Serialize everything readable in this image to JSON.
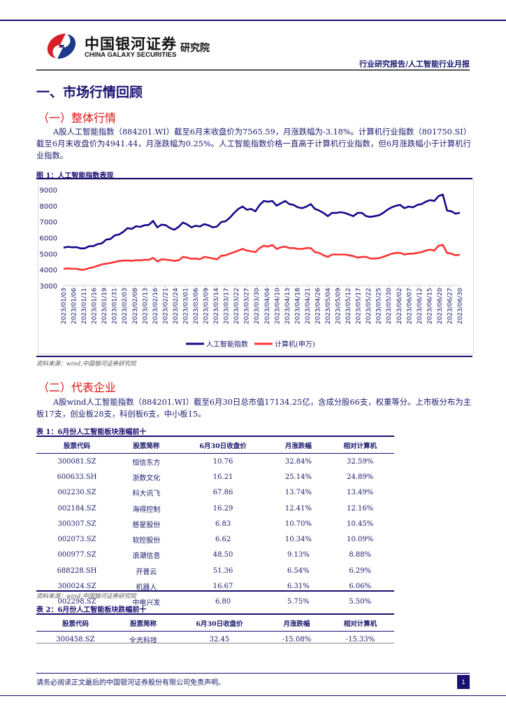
{
  "header": {
    "brand_cn": "中国银河证券",
    "brand_en": "CHINA GALAXY SECURITIES",
    "institute": "研究院",
    "report_tag": "行业研究报告/人工智能行业月报"
  },
  "section1": {
    "title": "一、市场行情回顾",
    "sub1_title": "（一）整体行情",
    "para1": "A股人工智能指数（884201.WI）截至6月末收盘价为7565.59，月涨跌幅为-3.18%。计算机行业指数（801750.SI）截至6月末收盘价为4941.44，月涨跌幅为0.25%。人工智能指数价格一直高于计算机行业指数，但6月涨跌幅小于计算机行业指数。",
    "figure1_caption": "图 1：人工智能指数表现",
    "figure1_source": "资料来源：wind,中国银河证券研究院",
    "sub2_title": "（二）代表企业",
    "para2": "A股wind人工智能指数（884201.WI）截至6月30日总市值17134.25亿，含成分股66支，权重等分。上市板分布为主板17支，创业板28支，科创板6支，中小板15。",
    "table1_caption": "表 1：6月份人工智能板块涨幅前十",
    "table1_source": "资料来源：wind,中国银河证券研究院",
    "table2_caption": "表 2：6月份人工智能板块跌幅前十"
  },
  "table_headers": [
    "股票代码",
    "股票简称",
    "6月30日收盘价",
    "月涨跌幅",
    "相对计算机"
  ],
  "table1_rows": [
    [
      "300081.SZ",
      "恒信东方",
      "10.76",
      "32.84%",
      "32.59%"
    ],
    [
      "600633.SH",
      "浙数文化",
      "16.21",
      "25.14%",
      "24.89%"
    ],
    [
      "002230.SZ",
      "科大讯飞",
      "67.86",
      "13.74%",
      "13.49%"
    ],
    [
      "002184.SZ",
      "海得控制",
      "16.29",
      "12.41%",
      "12.16%"
    ],
    [
      "300307.SZ",
      "慈星股份",
      "6.83",
      "10.70%",
      "10.45%"
    ],
    [
      "002073.SZ",
      "软控股份",
      "6.62",
      "10.34%",
      "10.09%"
    ],
    [
      "000977.SZ",
      "浪潮信息",
      "48.50",
      "9.13%",
      "8.88%"
    ],
    [
      "688228.SH",
      "开普云",
      "51.36",
      "6.54%",
      "6.29%"
    ],
    [
      "300024.SZ",
      "机器人",
      "16.67",
      "6.31%",
      "6.06%"
    ],
    [
      "002298.SZ",
      "中电兴发",
      "6.80",
      "5.75%",
      "5.50%"
    ]
  ],
  "table2_rows": [
    [
      "300458.SZ",
      "全志科技",
      "32.45",
      "-15.08%",
      "-15.33%"
    ]
  ],
  "footer": {
    "disclaimer": "请务必阅读正文最后的中国银河证券股份有限公司免责声明。",
    "page": "1"
  },
  "colors": {
    "navy": "#1a1070",
    "red": "#ff3333",
    "ai_line": "#13088a"
  },
  "chart_data": {
    "type": "line",
    "title": "图 1：人工智能指数表现",
    "xlabel": "",
    "ylabel": "",
    "ylim": [
      3000,
      9000
    ],
    "yticks": [
      3000,
      4000,
      5000,
      6000,
      7000,
      8000,
      9000
    ],
    "grid": false,
    "legend_position": "bottom",
    "x_tick_labels": [
      "2023/01/03",
      "2023/01/06",
      "2023/01/11",
      "2023/01/16",
      "2023/01/19",
      "2023/01/31",
      "2023/02/03",
      "2023/02/08",
      "2023/02/13",
      "2023/02/16",
      "2023/02/21",
      "2023/02/24",
      "2023/03/01",
      "2023/03/06",
      "2023/03/09",
      "2023/03/14",
      "2023/03/17",
      "2023/03/22",
      "2023/03/27",
      "2023/03/30",
      "2023/04/04",
      "2023/04/10",
      "2023/04/13",
      "2023/04/18",
      "2023/04/21",
      "2023/04/26",
      "2023/05/04",
      "2023/05/09",
      "2023/05/12",
      "2023/05/17",
      "2023/05/22",
      "2023/05/25",
      "2023/05/30",
      "2023/06/02",
      "2023/06/07",
      "2023/06/12",
      "2023/06/15",
      "2023/06/20",
      "2023/06/27",
      "2023/06/30"
    ],
    "series": [
      {
        "name": "人工智能指数",
        "color": "#13088a",
        "values": [
          5380,
          5430,
          5400,
          5410,
          5330,
          5340,
          5470,
          5480,
          5600,
          5650,
          5880,
          5920,
          6150,
          6200,
          6370,
          6600,
          6550,
          6720,
          6680,
          6780,
          6800,
          7050,
          6650,
          6820,
          6780,
          6600,
          6500,
          6680,
          6950,
          6830,
          6650,
          6750,
          6700,
          6850,
          6780,
          6650,
          6700,
          6980,
          7030,
          7250,
          7550,
          7800,
          7950,
          7750,
          7800,
          7650,
          8050,
          8300,
          8250,
          8300,
          8000,
          8150,
          8300,
          8100,
          8050,
          7900,
          7850,
          7950,
          8100,
          7800,
          7700,
          7550,
          7350,
          7550,
          7550,
          7600,
          7550,
          7450,
          7350,
          7550,
          7550,
          7350,
          7300,
          7350,
          7400,
          7550,
          7750,
          7900,
          8000,
          8050,
          7850,
          7950,
          7900,
          8050,
          8100,
          8250,
          8350,
          8300,
          8600,
          8700,
          7700,
          7650,
          7500,
          7565
        ]
      },
      {
        "name": "计算机(申万)",
        "color": "#ff3333",
        "values": [
          4050,
          4080,
          4060,
          4050,
          4000,
          4010,
          4100,
          4150,
          4250,
          4330,
          4380,
          4420,
          4480,
          4540,
          4570,
          4580,
          4550,
          4600,
          4580,
          4620,
          4610,
          4740,
          4520,
          4650,
          4630,
          4600,
          4550,
          4580,
          4800,
          4750,
          4680,
          4700,
          4650,
          4800,
          4750,
          4700,
          4650,
          4870,
          4900,
          5000,
          5100,
          5200,
          5300,
          5200,
          5150,
          5100,
          5350,
          5500,
          5450,
          5550,
          5300,
          5400,
          5450,
          5350,
          5350,
          5300,
          5300,
          5350,
          5350,
          5100,
          5050,
          4900,
          4800,
          4950,
          4950,
          4950,
          4950,
          4900,
          4850,
          4750,
          4800,
          4800,
          4700,
          4700,
          4720,
          4800,
          4900,
          5000,
          5050,
          5050,
          4950,
          5000,
          5000,
          5050,
          5100,
          5200,
          5250,
          5200,
          5500,
          5550,
          5050,
          5000,
          4900,
          4941
        ]
      }
    ]
  }
}
